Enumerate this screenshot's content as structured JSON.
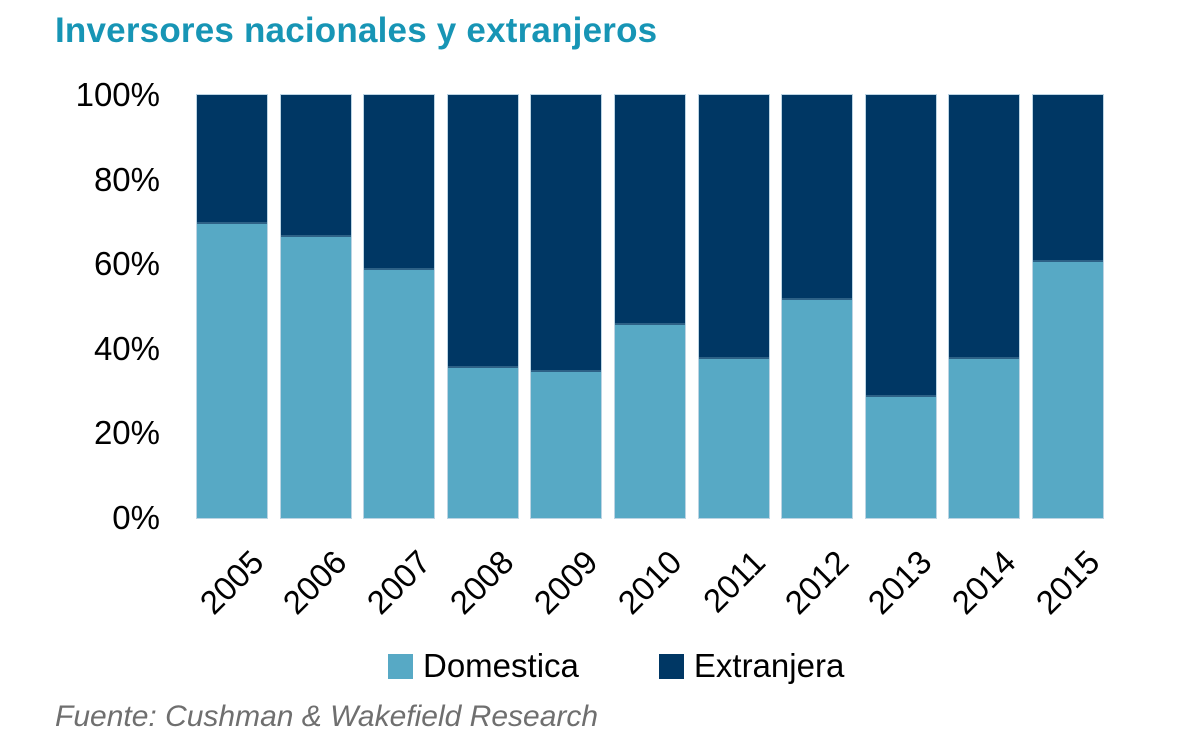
{
  "title": "Inversores nacionales y extranjeros",
  "source": "Fuente: Cushman & Wakefield Research",
  "colors": {
    "title": "#1795B5",
    "domestica": "#57A9C5",
    "extranjera": "#003764",
    "axis_text": "#000000",
    "source_text": "#6F6F6F",
    "background": "#FFFFFF"
  },
  "y_axis": {
    "tick_labels": [
      "100%",
      "80%",
      "60%",
      "40%",
      "20%",
      "0%"
    ]
  },
  "chart_data": {
    "type": "bar",
    "stacked": true,
    "percent_stacked": true,
    "title": "Inversores nacionales y extranjeros",
    "categories": [
      "2005",
      "2006",
      "2007",
      "2008",
      "2009",
      "2010",
      "2011",
      "2012",
      "2013",
      "2014",
      "2015"
    ],
    "series": [
      {
        "name": "Domestica",
        "color": "#57A9C5",
        "values": [
          70,
          67,
          59,
          36,
          35,
          46,
          38,
          52,
          29,
          38,
          61
        ]
      },
      {
        "name": "Extranjera",
        "color": "#003764",
        "values": [
          30,
          33,
          41,
          64,
          65,
          54,
          62,
          48,
          71,
          62,
          39
        ]
      }
    ],
    "xlabel": "",
    "ylabel": "",
    "ylim": [
      0,
      100
    ],
    "ytick_step": 20,
    "grid": false,
    "legend_position": "bottom",
    "x_tick_rotation_deg": 45
  }
}
